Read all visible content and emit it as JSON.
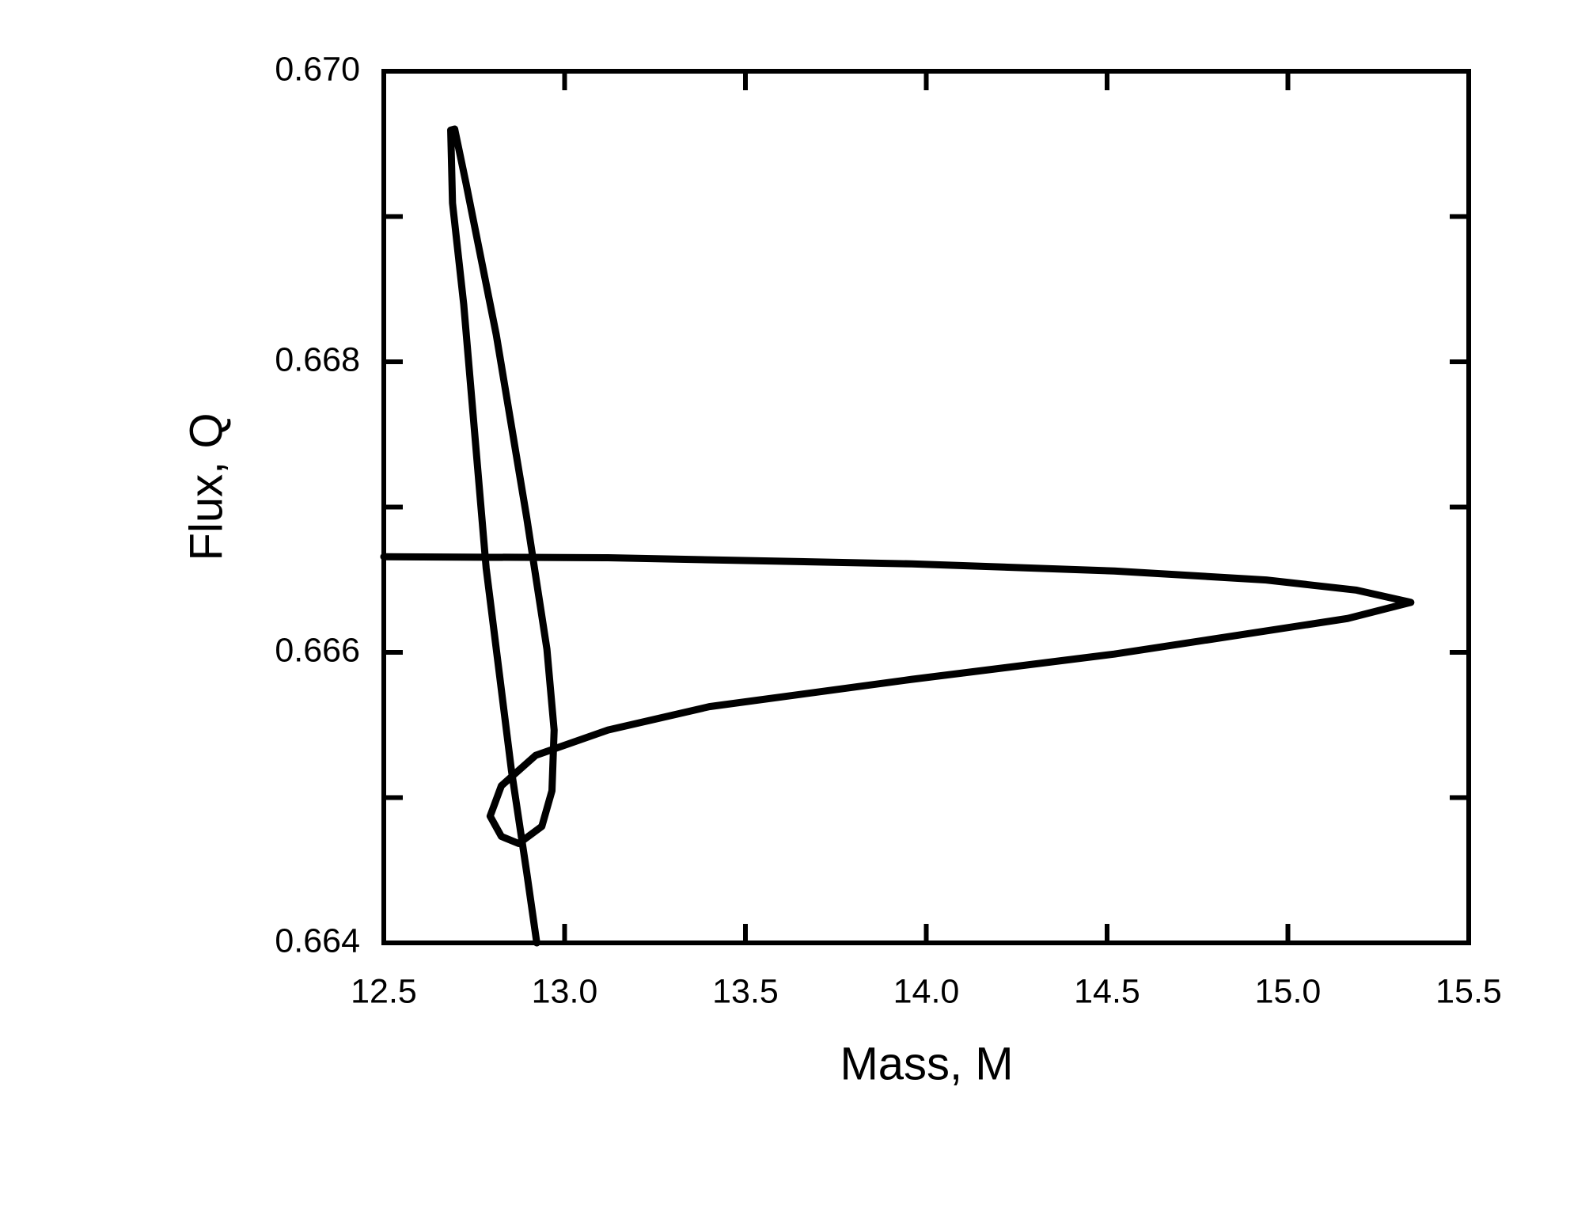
{
  "chart_data": {
    "type": "line",
    "xlabel": "Mass, M",
    "ylabel": "Flux, Q",
    "x": [
      12.5,
      13.12,
      13.96,
      14.52,
      14.94,
      15.19,
      15.34,
      15.165,
      14.52,
      13.96,
      13.4,
      13.12,
      12.92,
      12.825,
      12.794,
      12.825,
      12.873,
      12.937,
      12.965,
      12.971,
      12.951,
      12.895,
      12.811,
      12.727,
      12.696,
      12.685,
      12.69,
      12.721,
      12.783,
      12.853,
      12.895,
      12.923
    ],
    "series": [
      {
        "color": "#000000",
        "values": [
          0.666658,
          0.666651,
          0.666609,
          0.66656,
          0.666498,
          0.666428,
          0.666344,
          0.666233,
          0.665988,
          0.665814,
          0.665626,
          0.665465,
          0.665291,
          0.665081,
          0.664872,
          0.664733,
          0.664684,
          0.664802,
          0.665047,
          0.665465,
          0.666023,
          0.66693,
          0.668186,
          0.669233,
          0.669602,
          0.669595,
          0.669093,
          0.668395,
          0.666581,
          0.665186,
          0.664488,
          0.664
        ]
      }
    ],
    "xlim": [
      12.5,
      15.5
    ],
    "xticks": [
      12.5,
      {
        "value": 13,
        "label": "13.0"
      },
      13.5,
      {
        "value": 14,
        "label": "14.0"
      },
      14.5,
      {
        "value": 15,
        "label": "15.0"
      },
      15.5
    ],
    "ylim": [
      0.664,
      0.67
    ],
    "yticks": [
      0.664,
      0.666,
      0.668,
      {
        "value": 0.67,
        "label": "0.670"
      }
    ],
    "y_minor_ticks": [
      0.665,
      0.667,
      0.669
    ],
    "grid": false
  }
}
